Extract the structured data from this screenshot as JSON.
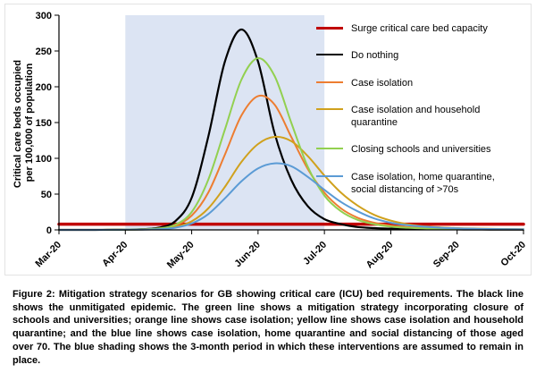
{
  "chart_data": {
    "type": "line",
    "title": "",
    "xlabel": "",
    "ylabel_lines": [
      "Critical care beds occupied",
      "per 100,000 of population"
    ],
    "ylim": [
      0,
      300
    ],
    "yticks": [
      0,
      50,
      100,
      150,
      200,
      250,
      300
    ],
    "x_range": [
      0,
      7
    ],
    "x_tick_labels": [
      "Mar-20",
      "Apr-20",
      "May-20",
      "Jun-20",
      "Jul-20",
      "Aug-20",
      "Sep-20",
      "Oct-20"
    ],
    "grid": false,
    "legend_position": "inside-right",
    "shaded_region": {
      "x0": 1,
      "x1": 4,
      "color": "#dce4f3"
    },
    "x": [
      0,
      0.25,
      0.5,
      0.75,
      1,
      1.25,
      1.5,
      1.75,
      2,
      2.25,
      2.5,
      2.75,
      3,
      3.25,
      3.5,
      3.75,
      4,
      4.25,
      4.5,
      4.75,
      5,
      5.25,
      5.5,
      5.75,
      6,
      6.25,
      6.5,
      6.75,
      7
    ],
    "series": [
      {
        "name": "Surge critical care bed capacity",
        "color": "#c00000",
        "width": 3.5,
        "x": [
          0,
          7
        ],
        "values": [
          8,
          8
        ]
      },
      {
        "name": "Do nothing",
        "color": "#000000",
        "width": 2.2,
        "values": [
          0,
          0,
          0,
          0.2,
          0.5,
          1,
          3,
          12,
          45,
          130,
          235,
          280,
          235,
          135,
          70,
          33,
          15,
          8,
          4,
          2.5,
          1.8,
          1.2,
          1,
          0.8,
          0.7,
          0.6,
          0.5,
          0.5,
          0.5
        ]
      },
      {
        "name": "Case isolation",
        "color": "#ed7d31",
        "width": 2,
        "values": [
          0,
          0,
          0,
          0.1,
          0.3,
          0.7,
          1.8,
          6,
          20,
          52,
          105,
          160,
          187,
          175,
          130,
          85,
          52,
          30,
          17,
          10,
          6,
          4,
          2.5,
          1.8,
          1.4,
          1.1,
          0.9,
          0.8,
          0.7
        ]
      },
      {
        "name": "Case isolation and household quarantine",
        "color": "#d0a11d",
        "width": 2,
        "values": [
          0,
          0,
          0,
          0.1,
          0.2,
          0.5,
          1.2,
          4,
          12,
          30,
          60,
          95,
          120,
          130,
          124,
          103,
          76,
          52,
          34,
          21,
          13,
          8,
          5,
          3.5,
          2.5,
          2,
          1.5,
          1.2,
          1
        ]
      },
      {
        "name": "Closing schools and universities",
        "color": "#92d050",
        "width": 2,
        "values": [
          0,
          0,
          0,
          0.1,
          0.3,
          0.8,
          2,
          7,
          25,
          70,
          140,
          210,
          240,
          215,
          150,
          88,
          48,
          26,
          14,
          8,
          4.5,
          3,
          2,
          1.5,
          1.2,
          1,
          0.8,
          0.7,
          0.6
        ]
      },
      {
        "name": "Case isolation, home quarantine, social distancing of >70s",
        "color": "#5b9bd5",
        "width": 2,
        "values": [
          0,
          0,
          0,
          0.1,
          0.2,
          0.4,
          1,
          3,
          9,
          22,
          44,
          68,
          86,
          93,
          89,
          74,
          56,
          39,
          26,
          16,
          10,
          6.5,
          4.5,
          3,
          2.2,
          1.7,
          1.3,
          1,
          0.8
        ]
      }
    ]
  },
  "caption": {
    "text": "Figure 2: Mitigation strategy scenarios for GB showing critical care (ICU) bed requirements. The black line shows the unmitigated epidemic. The green line shows a mitigation strategy incorporating closure of schools and universities; orange line shows case isolation; yellow line shows case isolation and household quarantine; and the blue line shows case isolation, home quarantine and social distancing of those aged over 70. The blue shading shows the 3-month period in which these interventions are assumed to remain in place."
  }
}
